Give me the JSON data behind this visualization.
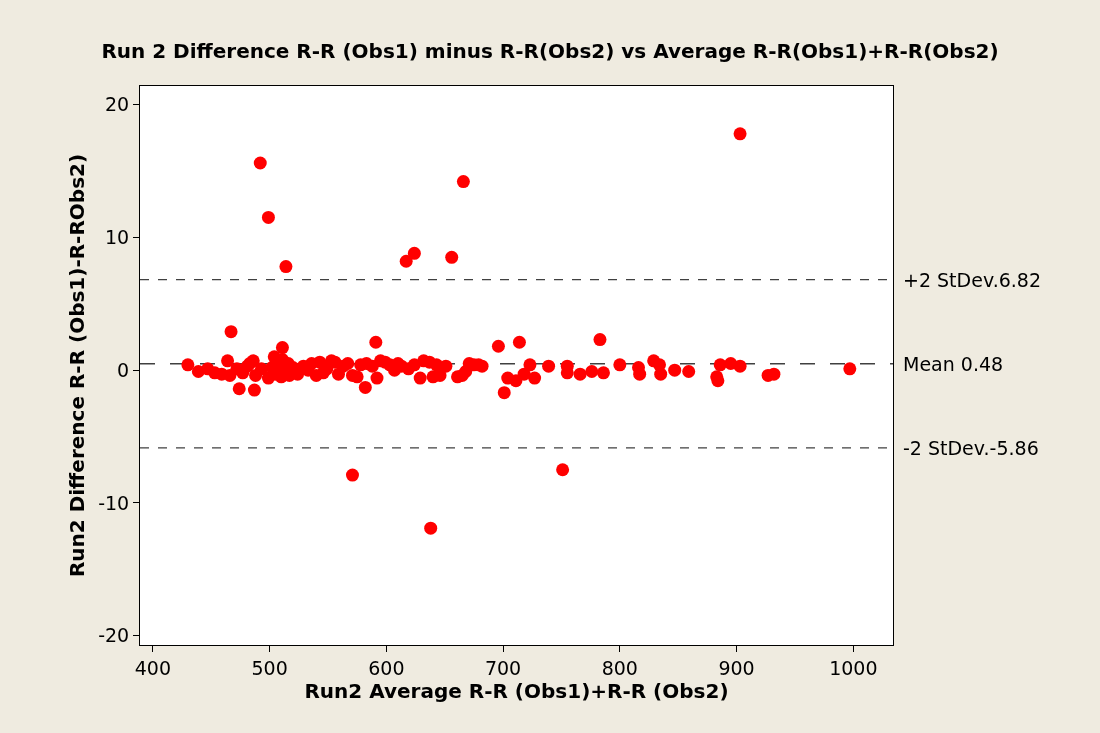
{
  "chart_data": {
    "type": "scatter",
    "title": "Run 2 Difference R-R (Obs1) minus R-R(Obs2) vs Average R-R(Obs1)+R-R(Obs2)",
    "xlabel": "Run2 Average R-R (Obs1)+R-R (Obs2)",
    "ylabel": "Run2 Difference R-R (Obs1)-R-RObs2)",
    "xlim": [
      389,
      1034
    ],
    "ylim": [
      -20.7,
      21.4
    ],
    "xticks": [
      400,
      500,
      600,
      700,
      800,
      900,
      1000
    ],
    "yticks": [
      -20,
      -10,
      0,
      10,
      20
    ],
    "grid": false,
    "legend": false,
    "marker": "circle",
    "series": [
      {
        "color": "#ff0000",
        "x": [
          492,
          499,
          514,
          666,
          624,
          617,
          656,
          903,
          571,
          638,
          751,
          467,
          591,
          696,
          714,
          783,
          701,
          474,
          487,
          582,
          511,
          430,
          439,
          447,
          453,
          459,
          464,
          466,
          472,
          477,
          481,
          483,
          486,
          488,
          493,
          499,
          502,
          504,
          505,
          508,
          510,
          511,
          513,
          516,
          517,
          520,
          524,
          529,
          533,
          536,
          540,
          543,
          546,
          549,
          553,
          556,
          559,
          563,
          567,
          571,
          575,
          578,
          583,
          588,
          592,
          595,
          599,
          603,
          607,
          610,
          613,
          619,
          624,
          629,
          632,
          637,
          640,
          643,
          646,
          651,
          661,
          665,
          668,
          671,
          675,
          679,
          682,
          704,
          711,
          718,
          723,
          727,
          739,
          755,
          755,
          766,
          776,
          786,
          800,
          816,
          817,
          829,
          834,
          835,
          847,
          859,
          883,
          884,
          886,
          895,
          903,
          927,
          932,
          997
        ],
        "values": [
          15.6,
          11.5,
          7.8,
          14.2,
          8.8,
          8.2,
          8.5,
          17.8,
          -7.9,
          -11.9,
          -7.5,
          2.9,
          2.1,
          1.8,
          2.1,
          2.3,
          -1.7,
          -1.4,
          -1.5,
          -1.3,
          1.7,
          0.4,
          -0.1,
          0.1,
          -0.2,
          -0.3,
          0.7,
          -0.4,
          0.1,
          -0.2,
          0.3,
          0.5,
          0.7,
          -0.4,
          0.1,
          -0.6,
          0.2,
          1.0,
          -0.3,
          0.5,
          -0.5,
          0.8,
          -0.1,
          0.5,
          -0.4,
          0.2,
          -0.3,
          0.3,
          0.0,
          0.5,
          -0.4,
          0.6,
          -0.2,
          0.1,
          0.7,
          0.6,
          -0.3,
          0.3,
          0.5,
          -0.4,
          -0.5,
          0.4,
          0.5,
          0.3,
          -0.6,
          0.7,
          0.6,
          0.4,
          0.0,
          0.5,
          0.3,
          0.1,
          0.4,
          -0.6,
          0.7,
          0.6,
          -0.5,
          0.4,
          -0.4,
          0.3,
          -0.5,
          -0.4,
          -0.1,
          0.5,
          0.4,
          0.4,
          0.3,
          -0.6,
          -0.8,
          -0.3,
          0.4,
          -0.6,
          0.3,
          -0.2,
          0.3,
          -0.3,
          -0.1,
          -0.2,
          0.4,
          0.2,
          -0.3,
          0.7,
          0.4,
          -0.3,
          0.0,
          -0.1,
          -0.5,
          -0.8,
          0.4,
          0.5,
          0.3,
          -0.4,
          -0.3,
          0.1
        ]
      }
    ],
    "ref_lines": [
      {
        "axis": "y",
        "value": 6.82,
        "label": "+2 StDev.6.82",
        "color": "#404040",
        "line_style": "dotted"
      },
      {
        "axis": "y",
        "value": 0.48,
        "label": "Mean 0.48",
        "color": "#404040",
        "line_style": "dashed"
      },
      {
        "axis": "y",
        "value": -5.86,
        "label": "-2 StDev.-5.86",
        "color": "#404040",
        "line_style": "dotted"
      }
    ]
  }
}
